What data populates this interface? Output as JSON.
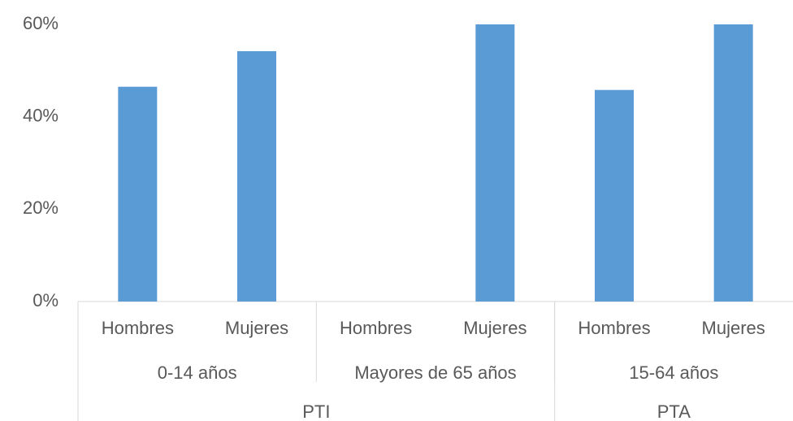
{
  "chart_data": {
    "type": "bar",
    "categories": [
      "Hombres",
      "Mujeres",
      "Hombres",
      "Mujeres",
      "Hombres",
      "Mujeres"
    ],
    "values": [
      46.5,
      54.2,
      0,
      60,
      45.8,
      60
    ],
    "color": "#5b9bd5",
    "groups": [
      {
        "label": "0-14 años",
        "span": 2
      },
      {
        "label": "Mayores de 65 años",
        "span": 2
      },
      {
        "label": "15-64 años",
        "span": 2
      }
    ],
    "super_groups": [
      {
        "label": "PTI",
        "span": 4
      },
      {
        "label": "PTA",
        "span": 2
      }
    ],
    "ylim": [
      0,
      60
    ],
    "yticks": [
      {
        "value": 0,
        "label": "0%"
      },
      {
        "value": 20,
        "label": "20%"
      },
      {
        "value": 40,
        "label": "40%"
      },
      {
        "value": 60,
        "label": "60%"
      }
    ],
    "grid": false
  }
}
